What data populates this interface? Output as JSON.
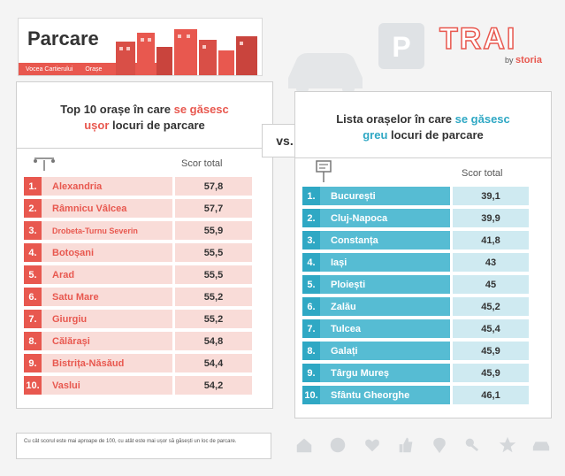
{
  "header": {
    "title": "Parcare",
    "tags": [
      "Vocea Cartierului",
      "Orașe"
    ]
  },
  "brand": {
    "word": "TRAI",
    "by": "by",
    "name": "storia"
  },
  "vs_label": "vs.",
  "left": {
    "title_parts": [
      "Top 10 orașe în care ",
      "se găsesc",
      "ușor",
      " locuri de parcare"
    ],
    "score_header": "Scor total",
    "accent": "#e8584f",
    "rows": [
      {
        "num": "1.",
        "name": "Alexandria",
        "score": "57,8"
      },
      {
        "num": "2.",
        "name": "Râmnicu Vâlcea",
        "score": "57,7"
      },
      {
        "num": "3.",
        "name": "Drobeta-Turnu Severin",
        "score": "55,9"
      },
      {
        "num": "4.",
        "name": "Botoșani",
        "score": "55,5"
      },
      {
        "num": "5.",
        "name": "Arad",
        "score": "55,5"
      },
      {
        "num": "6.",
        "name": "Satu Mare",
        "score": "55,2"
      },
      {
        "num": "7.",
        "name": "Giurgiu",
        "score": "55,2"
      },
      {
        "num": "8.",
        "name": "Călărași",
        "score": "54,8"
      },
      {
        "num": "9.",
        "name": "Bistrița-Năsăud",
        "score": "54,4"
      },
      {
        "num": "10.",
        "name": "Vaslui",
        "score": "54,2"
      }
    ]
  },
  "right": {
    "title_parts": [
      "Lista orașelor în care ",
      "se găsesc",
      "greu",
      " locuri de parcare"
    ],
    "score_header": "Scor total",
    "accent": "#2fa8c4",
    "rows": [
      {
        "num": "1.",
        "name": "București",
        "score": "39,1"
      },
      {
        "num": "2.",
        "name": "Cluj-Napoca",
        "score": "39,9"
      },
      {
        "num": "3.",
        "name": "Constanța",
        "score": "41,8"
      },
      {
        "num": "4.",
        "name": "Iași",
        "score": "43"
      },
      {
        "num": "5.",
        "name": "Ploiești",
        "score": "45"
      },
      {
        "num": "6.",
        "name": "Zalău",
        "score": "45,2"
      },
      {
        "num": "7.",
        "name": "Tulcea",
        "score": "45,4"
      },
      {
        "num": "8.",
        "name": "Galați",
        "score": "45,9"
      },
      {
        "num": "9.",
        "name": "Târgu Mureș",
        "score": "45,9"
      },
      {
        "num": "10.",
        "name": "Sfântu Gheorghe",
        "score": "46,1"
      }
    ]
  },
  "footnote": "Cu cât scorul este mai aproape de 100, cu atât este mai ușor să găsești un loc de parcare.",
  "bottom_icons": [
    "house-icon",
    "smiley-icon",
    "heart-icon",
    "thumbs-up-icon",
    "location-pin-icon",
    "key-icon",
    "star-icon",
    "car-icon"
  ]
}
